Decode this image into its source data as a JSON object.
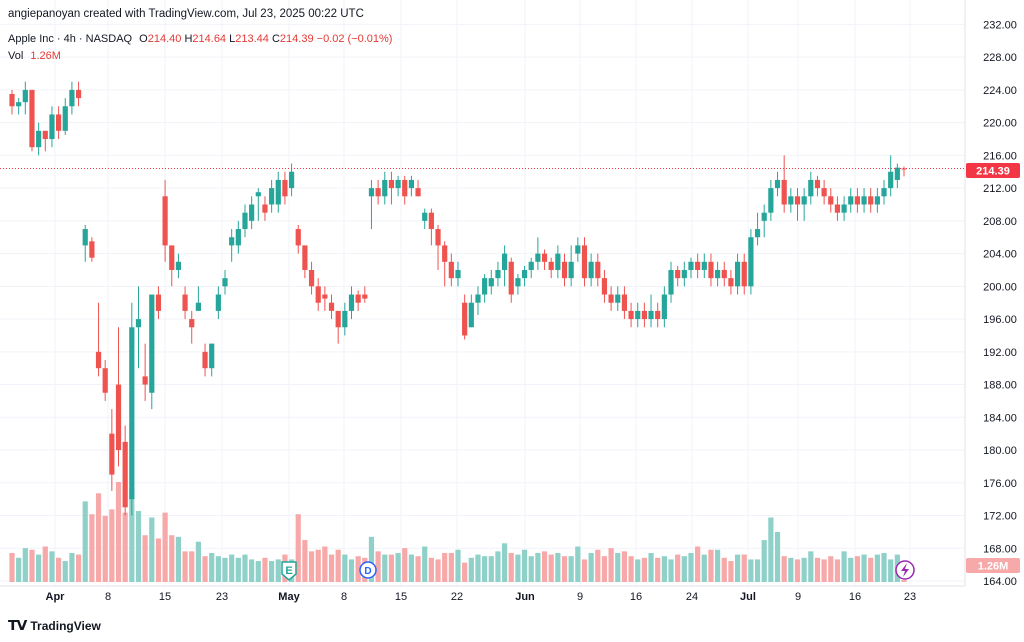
{
  "attribution": "angiepanoyan created with TradingView.com, Jul 23, 2025 00:22 UTC",
  "symbol": {
    "name": "Apple Inc · 4h · NASDAQ",
    "o_label": "O",
    "o": "214.40",
    "h_label": "H",
    "h": "214.64",
    "l_label": "L",
    "l": "213.44",
    "c_label": "C",
    "c": "214.39",
    "change": "−0.02 (−0.01%)"
  },
  "volume": {
    "label": "Vol",
    "value": "1.26M"
  },
  "price_tag": "214.39",
  "volume_tag": "1.26M",
  "event_markers": {
    "earnings": "E",
    "dividend": "D"
  },
  "footer_brand": "TradingView",
  "colors": {
    "up": "#26a69a",
    "down": "#ef5350",
    "vol_up": "#8fd1c9",
    "vol_down": "#f6a9a8",
    "price_tag": "#f23645",
    "grid": "#f0f3fa"
  },
  "chart_data": {
    "type": "candlestick",
    "y_ticks": [
      "164.00",
      "168.00",
      "172.00",
      "176.00",
      "180.00",
      "184.00",
      "188.00",
      "192.00",
      "196.00",
      "200.00",
      "204.00",
      "208.00",
      "212.00",
      "216.00",
      "220.00",
      "224.00",
      "228.00",
      "232.00"
    ],
    "ylim": [
      163,
      233
    ],
    "x_ticks": [
      "Apr",
      "8",
      "15",
      "23",
      "May",
      "8",
      "15",
      "22",
      "Jun",
      "9",
      "16",
      "24",
      "Jul",
      "9",
      "16",
      "23"
    ],
    "last_price": 214.39,
    "candles": [
      [
        223.5,
        222,
        224,
        221
      ],
      [
        222,
        222.5,
        223,
        221
      ],
      [
        222.5,
        224,
        225,
        221
      ],
      [
        224,
        217,
        224,
        216.5
      ],
      [
        217,
        219,
        220,
        216
      ],
      [
        219,
        218,
        219,
        216.5
      ],
      [
        218,
        221,
        222,
        217
      ],
      [
        221,
        219,
        222,
        218
      ],
      [
        219,
        222,
        223,
        218.5
      ],
      [
        222,
        224,
        225,
        221
      ],
      [
        224,
        223,
        225,
        222
      ],
      [
        205,
        207,
        207.5,
        203
      ],
      [
        205.5,
        203.5,
        206,
        203
      ],
      [
        192,
        190,
        198,
        189
      ],
      [
        190,
        187,
        191,
        186
      ],
      [
        182,
        177,
        185,
        175
      ],
      [
        188,
        180,
        195,
        178
      ],
      [
        181,
        173,
        183,
        172
      ],
      [
        174,
        195,
        198,
        172
      ],
      [
        195,
        196,
        200,
        190
      ],
      [
        189,
        188,
        193,
        186
      ],
      [
        187,
        199,
        199,
        185
      ],
      [
        199,
        197,
        200,
        196
      ],
      [
        211,
        205,
        213,
        203
      ],
      [
        205,
        202,
        203,
        200
      ],
      [
        202,
        203,
        204,
        201
      ],
      [
        199,
        197,
        200,
        196
      ],
      [
        196,
        195,
        197,
        193
      ],
      [
        197,
        198,
        200,
        197
      ],
      [
        192,
        190,
        193,
        189
      ],
      [
        190,
        193,
        193,
        189
      ],
      [
        197,
        199,
        200,
        196
      ],
      [
        200,
        201,
        202,
        199
      ],
      [
        205,
        206,
        207,
        203
      ],
      [
        205,
        207,
        208,
        204
      ],
      [
        207,
        209,
        210,
        206
      ],
      [
        208,
        210,
        211,
        207
      ],
      [
        211,
        211.5,
        212,
        208
      ],
      [
        210,
        209,
        211,
        208
      ],
      [
        210,
        212,
        213,
        209
      ],
      [
        210,
        213,
        214,
        209
      ],
      [
        213,
        211,
        214,
        210
      ],
      [
        212,
        214,
        215,
        211
      ],
      [
        207,
        205,
        207.5,
        204
      ],
      [
        205,
        202,
        205,
        201
      ],
      [
        202,
        200,
        203,
        199
      ],
      [
        200,
        198,
        201,
        197
      ],
      [
        199,
        198.5,
        200,
        197
      ],
      [
        198,
        197,
        199,
        196
      ],
      [
        197,
        195,
        197,
        193
      ],
      [
        195,
        197,
        198,
        194
      ],
      [
        197,
        199,
        200,
        196
      ],
      [
        199,
        198,
        199.5,
        197
      ],
      [
        199,
        198.5,
        200,
        198
      ],
      [
        211,
        212,
        213,
        207
      ],
      [
        212,
        211,
        213,
        210
      ],
      [
        211,
        213,
        214,
        210
      ],
      [
        213,
        212,
        214,
        210
      ],
      [
        212,
        213,
        213.5,
        211
      ],
      [
        213,
        211,
        213.5,
        210
      ],
      [
        212,
        213,
        213.5,
        211
      ],
      [
        212,
        211,
        213,
        211
      ],
      [
        208,
        209,
        209.5,
        207
      ],
      [
        209,
        207,
        209.5,
        205
      ],
      [
        207,
        205,
        207.5,
        202
      ],
      [
        205,
        203,
        205.5,
        200
      ],
      [
        203,
        201,
        204,
        200
      ],
      [
        201,
        202,
        203,
        200
      ],
      [
        198,
        194,
        199,
        193.5
      ],
      [
        195,
        198,
        199,
        195
      ],
      [
        198,
        199,
        200,
        196.5
      ],
      [
        199,
        201,
        201.5,
        198
      ],
      [
        200,
        201,
        202,
        199
      ],
      [
        201,
        202,
        203,
        200
      ],
      [
        202,
        204,
        205,
        200
      ],
      [
        203,
        199,
        203.5,
        198
      ],
      [
        200,
        201,
        201.5,
        199
      ],
      [
        201,
        202,
        202.5,
        200
      ],
      [
        202,
        203,
        203.5,
        201
      ],
      [
        203,
        204,
        206,
        202
      ],
      [
        204,
        203,
        204.5,
        202
      ],
      [
        203,
        202,
        203.5,
        201
      ],
      [
        202,
        204,
        205,
        201
      ],
      [
        203,
        201,
        204,
        200
      ],
      [
        201,
        203,
        205,
        200
      ],
      [
        204,
        205,
        206,
        203
      ],
      [
        205,
        201,
        206,
        200
      ],
      [
        201,
        203,
        204,
        200
      ],
      [
        203,
        201,
        204,
        200
      ],
      [
        201,
        199,
        202,
        198
      ],
      [
        199,
        198,
        200,
        197
      ],
      [
        198,
        199,
        200,
        197
      ],
      [
        199,
        197,
        200,
        196
      ],
      [
        197,
        196,
        198,
        195
      ],
      [
        196,
        197,
        198,
        195
      ],
      [
        197,
        196,
        198,
        195
      ],
      [
        196,
        197,
        199,
        195
      ],
      [
        197,
        196,
        198,
        195
      ],
      [
        196,
        199,
        200,
        195
      ],
      [
        199,
        202,
        203,
        198
      ],
      [
        202,
        201,
        202.5,
        200
      ],
      [
        201,
        202,
        203,
        200
      ],
      [
        202,
        203,
        203.5,
        201
      ],
      [
        203,
        202,
        204,
        201
      ],
      [
        202,
        203,
        204,
        201
      ],
      [
        203,
        201,
        204,
        200
      ],
      [
        201,
        202,
        203,
        200
      ],
      [
        202,
        201,
        203,
        200
      ],
      [
        201,
        200,
        202,
        199
      ],
      [
        200,
        203,
        204,
        199
      ],
      [
        203,
        200,
        204,
        199
      ],
      [
        200,
        206,
        207,
        199
      ],
      [
        206,
        207,
        209,
        205
      ],
      [
        208,
        209,
        210,
        206
      ],
      [
        209,
        212,
        213,
        208
      ],
      [
        212,
        213,
        214,
        211
      ],
      [
        213,
        210,
        216,
        209
      ],
      [
        210,
        211,
        212,
        209
      ],
      [
        211,
        210,
        212,
        208
      ],
      [
        210,
        211,
        212,
        208
      ],
      [
        211,
        213,
        214,
        210
      ],
      [
        213,
        212,
        213.5,
        211
      ],
      [
        212,
        211,
        213,
        210
      ],
      [
        211,
        210,
        212,
        209
      ],
      [
        210,
        209,
        211,
        208
      ],
      [
        209,
        210,
        211,
        208
      ],
      [
        210,
        211,
        212,
        209
      ],
      [
        211,
        210,
        212,
        209
      ],
      [
        210,
        211,
        212,
        209
      ],
      [
        211,
        210,
        212,
        209
      ],
      [
        210,
        211,
        212,
        209
      ],
      [
        211,
        212,
        213,
        210
      ],
      [
        212,
        214,
        216,
        211
      ],
      [
        213,
        214.5,
        215,
        212
      ],
      [
        214.4,
        214.39,
        214.64,
        213.44
      ]
    ],
    "volumes": [
      18,
      15,
      21,
      20,
      17,
      22,
      19,
      15,
      13,
      18,
      17,
      50,
      42,
      55,
      41,
      45,
      62,
      43,
      58,
      44,
      29,
      40,
      27,
      43,
      29,
      28,
      19,
      19,
      25,
      16,
      18,
      16,
      15,
      17,
      15,
      17,
      14,
      13,
      15,
      13,
      14,
      17,
      14,
      42,
      26,
      19,
      20,
      22,
      17,
      20,
      17,
      14,
      16,
      15,
      28,
      19,
      17,
      17,
      18,
      21,
      17,
      16,
      22,
      15,
      14,
      18,
      18,
      20,
      12,
      15,
      17,
      16,
      16,
      19,
      24,
      18,
      17,
      20,
      16,
      18,
      19,
      17,
      18,
      16,
      16,
      22,
      14,
      18,
      20,
      16,
      21,
      18,
      19,
      16,
      14,
      15,
      18,
      15,
      16,
      14,
      17,
      16,
      18,
      22,
      17,
      20,
      20,
      15,
      13,
      17,
      17,
      14,
      14,
      26,
      40,
      31,
      16,
      15,
      14,
      15,
      19,
      15,
      14,
      16,
      14,
      19,
      15,
      16,
      17,
      15,
      17,
      18,
      14,
      17,
      1.26
    ]
  }
}
